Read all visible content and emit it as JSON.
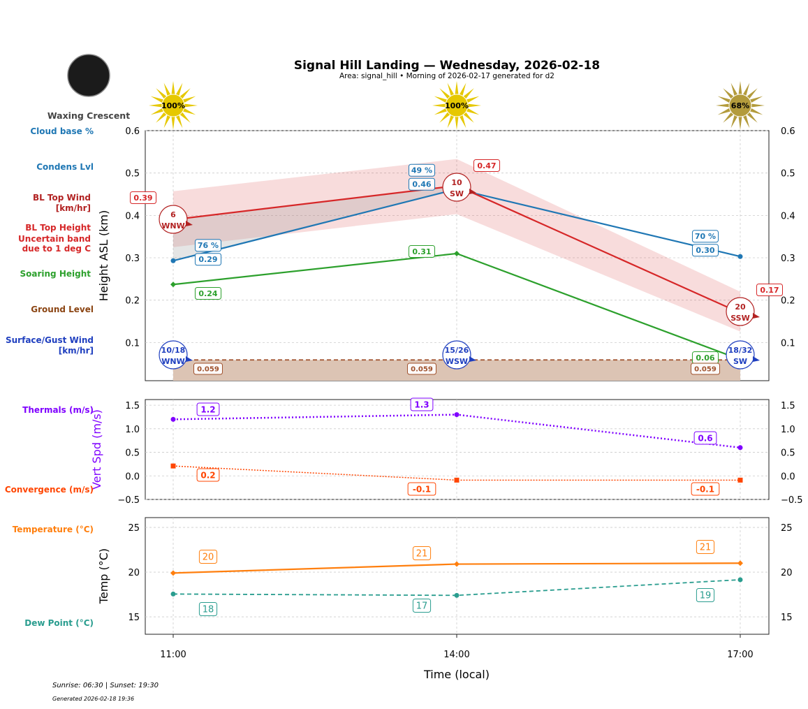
{
  "title": "Signal Hill Landing — Wednesday, 2026-02-18",
  "subtitle": "Area: signal_hill • Morning of 2026-02-17 generated for d2",
  "moon": {
    "phase": "Waxing Crescent"
  },
  "sun_badges": [
    {
      "time": "11:00",
      "label": "100%",
      "color": "#e6c800"
    },
    {
      "time": "14:00",
      "label": "100%",
      "color": "#e6c800"
    },
    {
      "time": "17:00",
      "label": "68%",
      "color": "#b39b3c"
    }
  ],
  "left_labels": [
    {
      "text": "Cloud base %",
      "color": "#1f77b4"
    },
    {
      "text": "Condens Lvl",
      "color": "#1f77b4"
    },
    {
      "text": "BL Top Wind\n[km/hr]",
      "color": "#b22222"
    },
    {
      "text": "BL Top Height\nUncertain band\ndue to 1 deg C",
      "color": "#d62728"
    },
    {
      "text": "Soaring Height",
      "color": "#2ca02c"
    },
    {
      "text": "Ground Level",
      "color": "#8b4513"
    },
    {
      "text": "Surface/Gust Wind\n[km/hr]",
      "color": "#1f3fbf"
    },
    {
      "text": "Thermals (m/s)",
      "color": "#7f00ff"
    },
    {
      "text": "Convergence (m/s)",
      "color": "#ff4500"
    },
    {
      "text": "Temperature (°C)",
      "color": "#ff7f0e"
    },
    {
      "text": "Dew Point (°C)",
      "color": "#2a9d8f"
    }
  ],
  "footer": {
    "sun": "Sunrise: 06:30 | Sunset: 19:30",
    "generated": "Generated 2026-02-18 19:36"
  },
  "chart_data": [
    {
      "type": "line",
      "ylabel": "Height ASL (km)",
      "xlim": [
        "10:42",
        "17:18"
      ],
      "ylim": [
        0.01,
        0.6
      ],
      "yticks": [
        0.1,
        0.2,
        0.3,
        0.4,
        0.5,
        0.6
      ],
      "grid": true,
      "x": [
        "11:00",
        "14:00",
        "17:00"
      ],
      "series": [
        {
          "name": "Condens Lvl",
          "color": "#1f77b4",
          "values": [
            0.293,
            0.462,
            0.303
          ],
          "labels": [
            "0.29",
            "0.46",
            "0.30"
          ],
          "cloud_base_pct": [
            "76 %",
            "49 %",
            "70 %"
          ]
        },
        {
          "name": "BL Top Height",
          "color": "#d62728",
          "values": [
            0.39,
            0.47,
            0.17
          ],
          "labels": [
            "0.39",
            "0.47",
            "0.17"
          ],
          "band_upper": [
            0.457,
            0.533,
            0.22
          ],
          "band_lower": [
            0.325,
            0.403,
            0.126
          ]
        },
        {
          "name": "Soaring Height",
          "color": "#2ca02c",
          "values": [
            0.237,
            0.31,
            0.06
          ],
          "labels": [
            "0.24",
            "0.31",
            "0.06"
          ]
        },
        {
          "name": "Ground Level",
          "color": "#a0522d",
          "values": [
            0.059,
            0.059,
            0.059
          ],
          "labels": [
            "0.059",
            "0.059",
            "0.059"
          ]
        }
      ],
      "bl_top_wind": [
        {
          "speed": "6",
          "dir": "WNW"
        },
        {
          "speed": "10",
          "dir": "SW"
        },
        {
          "speed": "20",
          "dir": "SSW"
        }
      ],
      "surface_wind": [
        {
          "speed": "10/18",
          "dir": "WNW"
        },
        {
          "speed": "15/26",
          "dir": "WSW"
        },
        {
          "speed": "18/32",
          "dir": "SW"
        }
      ]
    },
    {
      "type": "line",
      "ylabel": "Vert Spd (m/s)",
      "ylim": [
        -0.5,
        1.62
      ],
      "yticks": [
        -0.5,
        0.0,
        0.5,
        1.0,
        1.5
      ],
      "grid": true,
      "x": [
        "11:00",
        "14:00",
        "17:00"
      ],
      "series": [
        {
          "name": "Thermals (m/s)",
          "color": "#7f00ff",
          "values": [
            1.2,
            1.3,
            0.6
          ],
          "labels": [
            "1.2",
            "1.3",
            "0.6"
          ]
        },
        {
          "name": "Convergence (m/s)",
          "color": "#ff4500",
          "values": [
            0.21,
            -0.09,
            -0.09
          ],
          "labels": [
            "0.2",
            "-0.1",
            "-0.1"
          ]
        }
      ]
    },
    {
      "type": "line",
      "ylabel": "Temp (°C)",
      "xlabel": "Time (local)",
      "ylim": [
        13.05,
        26.1
      ],
      "yticks": [
        15,
        20,
        25
      ],
      "grid": true,
      "x": [
        "11:00",
        "14:00",
        "17:00"
      ],
      "series": [
        {
          "name": "Temperature (°C)",
          "color": "#ff7f0e",
          "values": [
            19.9,
            20.9,
            21.0
          ],
          "labels": [
            "20",
            "21",
            "21"
          ]
        },
        {
          "name": "Dew Point (°C)",
          "color": "#2a9d8f",
          "values": [
            17.55,
            17.4,
            19.15
          ],
          "labels": [
            "18",
            "17",
            "19"
          ]
        }
      ]
    }
  ]
}
